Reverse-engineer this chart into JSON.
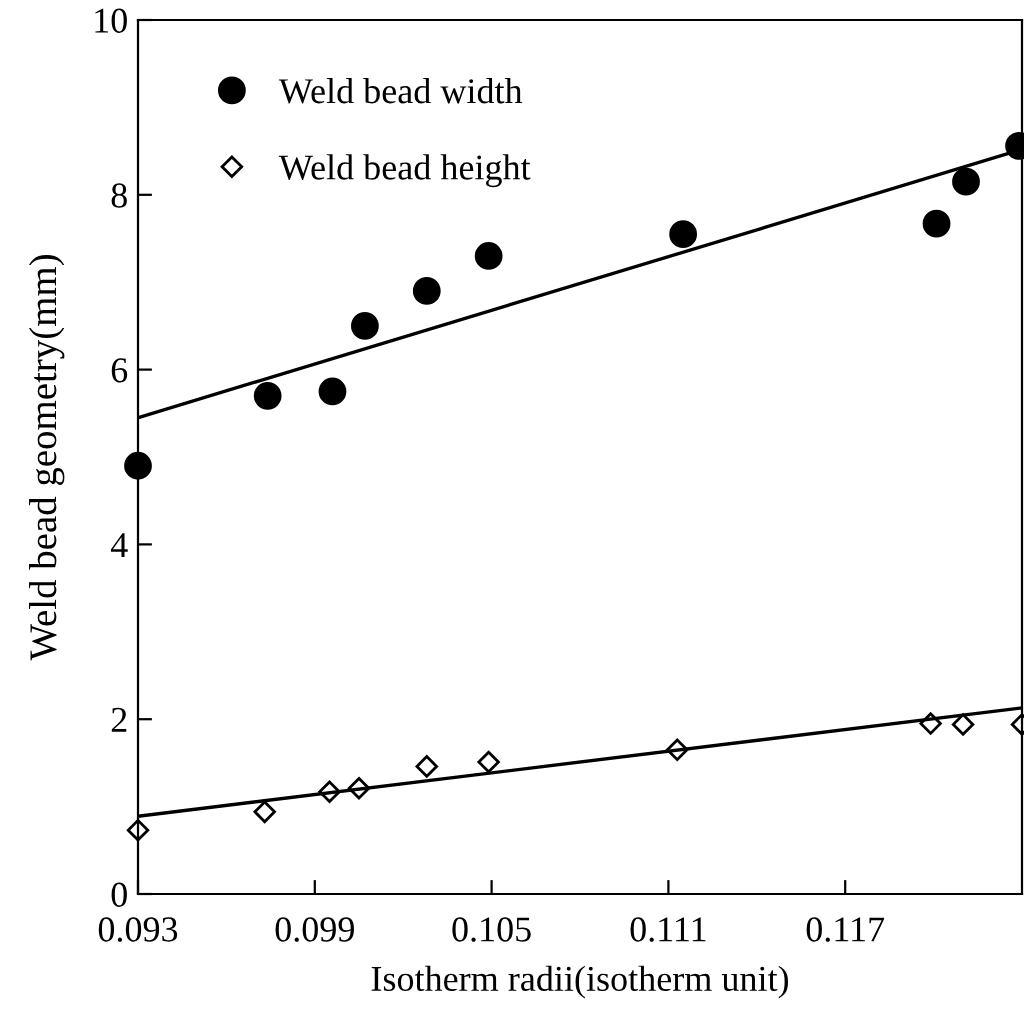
{
  "chart_data": {
    "type": "scatter",
    "xlabel": "Isotherm radii(isotherm unit)",
    "ylabel": "Weld bead geometry(mm)",
    "xlim": [
      0.093,
      0.123
    ],
    "xticks": [
      {
        "value": 0.093,
        "label": "0.093"
      },
      {
        "value": 0.099,
        "label": "0.099"
      },
      {
        "value": 0.105,
        "label": "0.105"
      },
      {
        "value": 0.111,
        "label": "0.111"
      },
      {
        "value": 0.117,
        "label": "0.117"
      }
    ],
    "ylim": [
      0,
      10
    ],
    "yticks": [
      0,
      2,
      4,
      6,
      8,
      10
    ],
    "grid": false,
    "legend": "top left",
    "series": [
      {
        "name": "Weld bead width",
        "marker": "circle",
        "color": "#000000",
        "x": [
          0.093,
          0.0974,
          0.0996,
          0.1007,
          0.1028,
          0.1049,
          0.1115,
          0.1201,
          0.1211,
          0.1229
        ],
        "values": [
          4.9,
          5.7,
          5.75,
          6.5,
          6.9,
          7.3,
          7.55,
          7.67,
          8.15,
          8.56
        ]
      },
      {
        "name": "Weld bead height",
        "marker": "diamond",
        "color": "#ffffff",
        "x": [
          0.093,
          0.0973,
          0.0995,
          0.1005,
          0.1028,
          0.1049,
          0.1113,
          0.1199,
          0.121,
          0.123
        ],
        "values": [
          0.73,
          0.94,
          1.17,
          1.21,
          1.46,
          1.51,
          1.65,
          1.95,
          1.94,
          1.94
        ]
      },
      {
        "type": "line",
        "color": "#000000",
        "line_style": "solid",
        "x": [
          0.093,
          0.123
        ],
        "values": [
          5.45,
          8.52
        ]
      },
      {
        "type": "line",
        "color": "#000000",
        "line_style": "solid",
        "x": [
          0.093,
          0.123
        ],
        "values": [
          0.89,
          2.13
        ]
      }
    ]
  }
}
